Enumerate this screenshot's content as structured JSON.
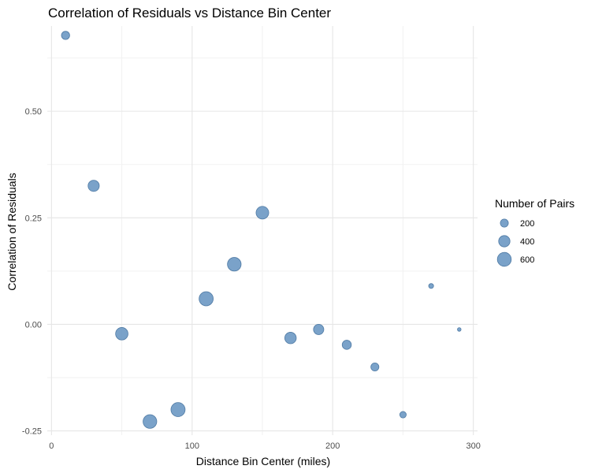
{
  "chart_data": {
    "type": "scatter",
    "title": "Correlation of Residuals vs Distance Bin Center",
    "xlabel": "Distance Bin Center (miles)",
    "ylabel": "Correlation of Residuals",
    "xlim": [
      -3,
      303
    ],
    "ylim": [
      -0.26,
      0.7
    ],
    "x_ticks": [
      0,
      100,
      200,
      300
    ],
    "x_tick_labels": [
      "0",
      "100",
      "200",
      "300"
    ],
    "x_minor_ticks": [
      50,
      150,
      250
    ],
    "y_ticks": [
      -0.25,
      0.0,
      0.25,
      0.5
    ],
    "y_tick_labels": [
      "-0.25",
      "0.00",
      "0.25",
      "0.50"
    ],
    "y_minor_ticks": [
      -0.125,
      0.125,
      0.375,
      0.625
    ],
    "grid": true,
    "point_color": "#6f9ac4",
    "point_edge_color": "#4f7aa4",
    "size_variable": "Number of Pairs",
    "legend": {
      "title": "Number of Pairs",
      "placement": "right",
      "entries": [
        {
          "label": "200",
          "size": 200
        },
        {
          "label": "400",
          "size": 400
        },
        {
          "label": "600",
          "size": 600
        }
      ]
    },
    "points": [
      {
        "x": 10,
        "y": 0.678,
        "size": 210
      },
      {
        "x": 30,
        "y": 0.325,
        "size": 390
      },
      {
        "x": 50,
        "y": -0.022,
        "size": 480
      },
      {
        "x": 70,
        "y": -0.228,
        "size": 580
      },
      {
        "x": 90,
        "y": -0.2,
        "size": 620
      },
      {
        "x": 110,
        "y": 0.06,
        "size": 620
      },
      {
        "x": 130,
        "y": 0.141,
        "size": 580
      },
      {
        "x": 150,
        "y": 0.262,
        "size": 500
      },
      {
        "x": 170,
        "y": -0.032,
        "size": 410
      },
      {
        "x": 190,
        "y": -0.012,
        "size": 330
      },
      {
        "x": 210,
        "y": -0.048,
        "size": 260
      },
      {
        "x": 230,
        "y": -0.1,
        "size": 200
      },
      {
        "x": 250,
        "y": -0.212,
        "size": 130
      },
      {
        "x": 270,
        "y": 0.09,
        "size": 75
      },
      {
        "x": 290,
        "y": -0.012,
        "size": 40
      }
    ]
  }
}
